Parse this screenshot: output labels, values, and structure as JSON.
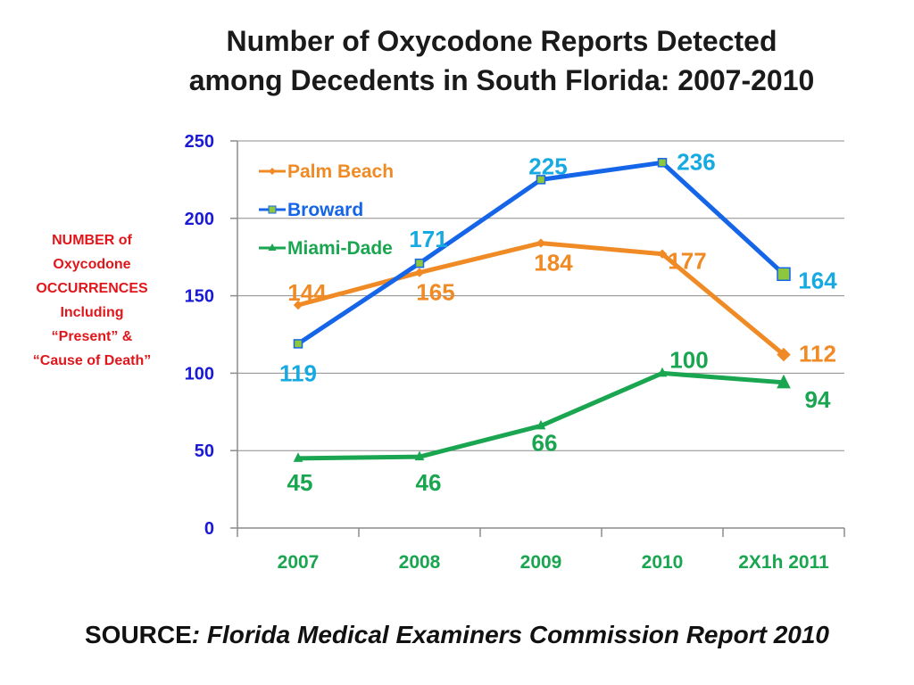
{
  "title": {
    "line1": "Number of Oxycodone Reports Detected",
    "line2": "among Decedents in South Florida: 2007-2010"
  },
  "ylabel": {
    "line1": "NUMBER of",
    "line2": "Oxycodone",
    "line3": "OCCURRENCES",
    "line4": "Including",
    "line5": "“Present”  &",
    "line6": "“Cause of Death”"
  },
  "source": {
    "prefix": "SOURCE",
    "text": ": Florida Medical Examiners Commission Report 2010"
  },
  "colors": {
    "palm_beach": "#f08a24",
    "broward": "#1565e8",
    "broward_marker": "#8dc63f",
    "miami_dade": "#1aa650",
    "broward_labels": "#17a9e1",
    "ytick": "#1a1ad6",
    "xtick": "#1aa650",
    "ylabel": "#e0161b",
    "grid": "#8c8c8c"
  },
  "chart_data": {
    "type": "line",
    "title": "Number of Oxycodone Reports Detected among Decedents in South Florida: 2007-2010",
    "xlabel": "",
    "ylabel": "NUMBER of Oxycodone OCCURRENCES Including “Present” & “Cause of Death”",
    "categories": [
      "2007",
      "2008",
      "2009",
      "2010",
      "2X1h 2011"
    ],
    "ylim": [
      0,
      250
    ],
    "yticks": [
      0,
      50,
      100,
      150,
      200,
      250
    ],
    "grid": true,
    "legend_position": "top-left",
    "series": [
      {
        "name": "Palm Beach",
        "values": [
          144,
          165,
          184,
          177,
          112
        ],
        "marker": "diamond"
      },
      {
        "name": "Broward",
        "values": [
          119,
          171,
          225,
          236,
          164
        ],
        "marker": "square"
      },
      {
        "name": "Miami-Dade",
        "values": [
          45,
          46,
          66,
          100,
          94
        ],
        "marker": "triangle"
      }
    ]
  }
}
